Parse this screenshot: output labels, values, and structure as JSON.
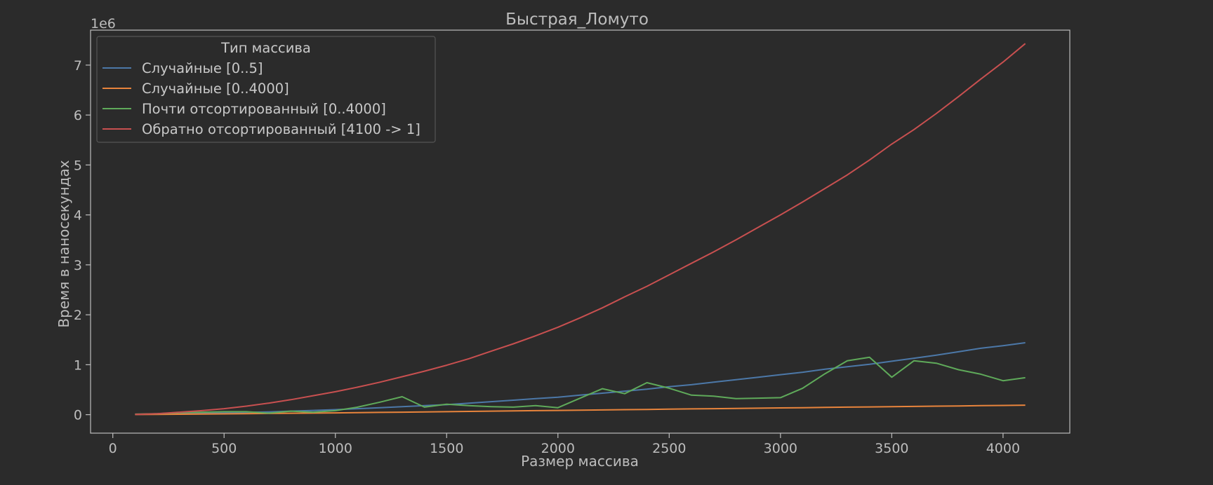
{
  "chart_data": {
    "type": "line",
    "title": "Быстрая_Ломуто",
    "xlabel": "Размер массива",
    "ylabel": "Время в наносекундах",
    "y_multiplier_label": "1e6",
    "xlim": [
      -100,
      4300
    ],
    "ylim": [
      -0.37,
      7.7
    ],
    "x_ticks": [
      0,
      500,
      1000,
      1500,
      2000,
      2500,
      3000,
      3500,
      4000
    ],
    "y_ticks": [
      0,
      1,
      2,
      3,
      4,
      5,
      6,
      7
    ],
    "grid": false,
    "legend_title": "Тип массива",
    "legend_position": "top-left",
    "x": [
      100,
      200,
      300,
      400,
      500,
      600,
      700,
      800,
      900,
      1000,
      1100,
      1200,
      1300,
      1400,
      1500,
      1600,
      1700,
      1800,
      1900,
      2000,
      2100,
      2200,
      2300,
      2400,
      2500,
      2600,
      2700,
      2800,
      2900,
      3000,
      3100,
      3200,
      3300,
      3400,
      3500,
      3600,
      3700,
      3800,
      3900,
      4000,
      4100
    ],
    "series": [
      {
        "name": "Случайные [0..5]",
        "color": "#4c78a8",
        "values": [
          0.005,
          0.01,
          0.015,
          0.025,
          0.035,
          0.045,
          0.055,
          0.07,
          0.085,
          0.1,
          0.12,
          0.14,
          0.16,
          0.18,
          0.2,
          0.23,
          0.26,
          0.29,
          0.32,
          0.35,
          0.39,
          0.43,
          0.47,
          0.51,
          0.56,
          0.6,
          0.65,
          0.7,
          0.75,
          0.8,
          0.85,
          0.91,
          0.96,
          1.01,
          1.07,
          1.13,
          1.19,
          1.26,
          1.33,
          1.38,
          1.44
        ]
      },
      {
        "name": "Случайные [0..4000]",
        "color": "#e8843c",
        "values": [
          0.003,
          0.006,
          0.009,
          0.012,
          0.016,
          0.02,
          0.024,
          0.028,
          0.032,
          0.036,
          0.04,
          0.045,
          0.05,
          0.055,
          0.06,
          0.065,
          0.07,
          0.075,
          0.08,
          0.085,
          0.09,
          0.095,
          0.1,
          0.105,
          0.11,
          0.115,
          0.12,
          0.125,
          0.13,
          0.135,
          0.14,
          0.145,
          0.15,
          0.155,
          0.16,
          0.165,
          0.17,
          0.175,
          0.18,
          0.185,
          0.19
        ]
      },
      {
        "name": "Почти отсортированный [0..4000]",
        "color": "#5faa5a",
        "values": [
          0.01,
          0.02,
          0.04,
          0.05,
          0.06,
          0.06,
          0.03,
          0.07,
          0.05,
          0.08,
          0.15,
          0.25,
          0.36,
          0.15,
          0.21,
          0.18,
          0.16,
          0.15,
          0.18,
          0.14,
          0.33,
          0.52,
          0.42,
          0.64,
          0.53,
          0.39,
          0.37,
          0.32,
          0.33,
          0.34,
          0.53,
          0.82,
          1.08,
          1.15,
          0.75,
          1.08,
          1.03,
          0.9,
          0.81,
          0.68,
          0.74
        ]
      },
      {
        "name": "Обратно отсортированный [4100 -> 1]",
        "color": "#c85050",
        "values": [
          0.005,
          0.02,
          0.05,
          0.08,
          0.12,
          0.17,
          0.23,
          0.3,
          0.38,
          0.46,
          0.55,
          0.65,
          0.76,
          0.87,
          0.99,
          1.12,
          1.27,
          1.42,
          1.58,
          1.75,
          1.94,
          2.14,
          2.36,
          2.57,
          2.8,
          3.03,
          3.26,
          3.5,
          3.75,
          4.0,
          4.26,
          4.53,
          4.8,
          5.1,
          5.42,
          5.71,
          6.03,
          6.37,
          6.72,
          7.06,
          7.43
        ]
      }
    ]
  }
}
